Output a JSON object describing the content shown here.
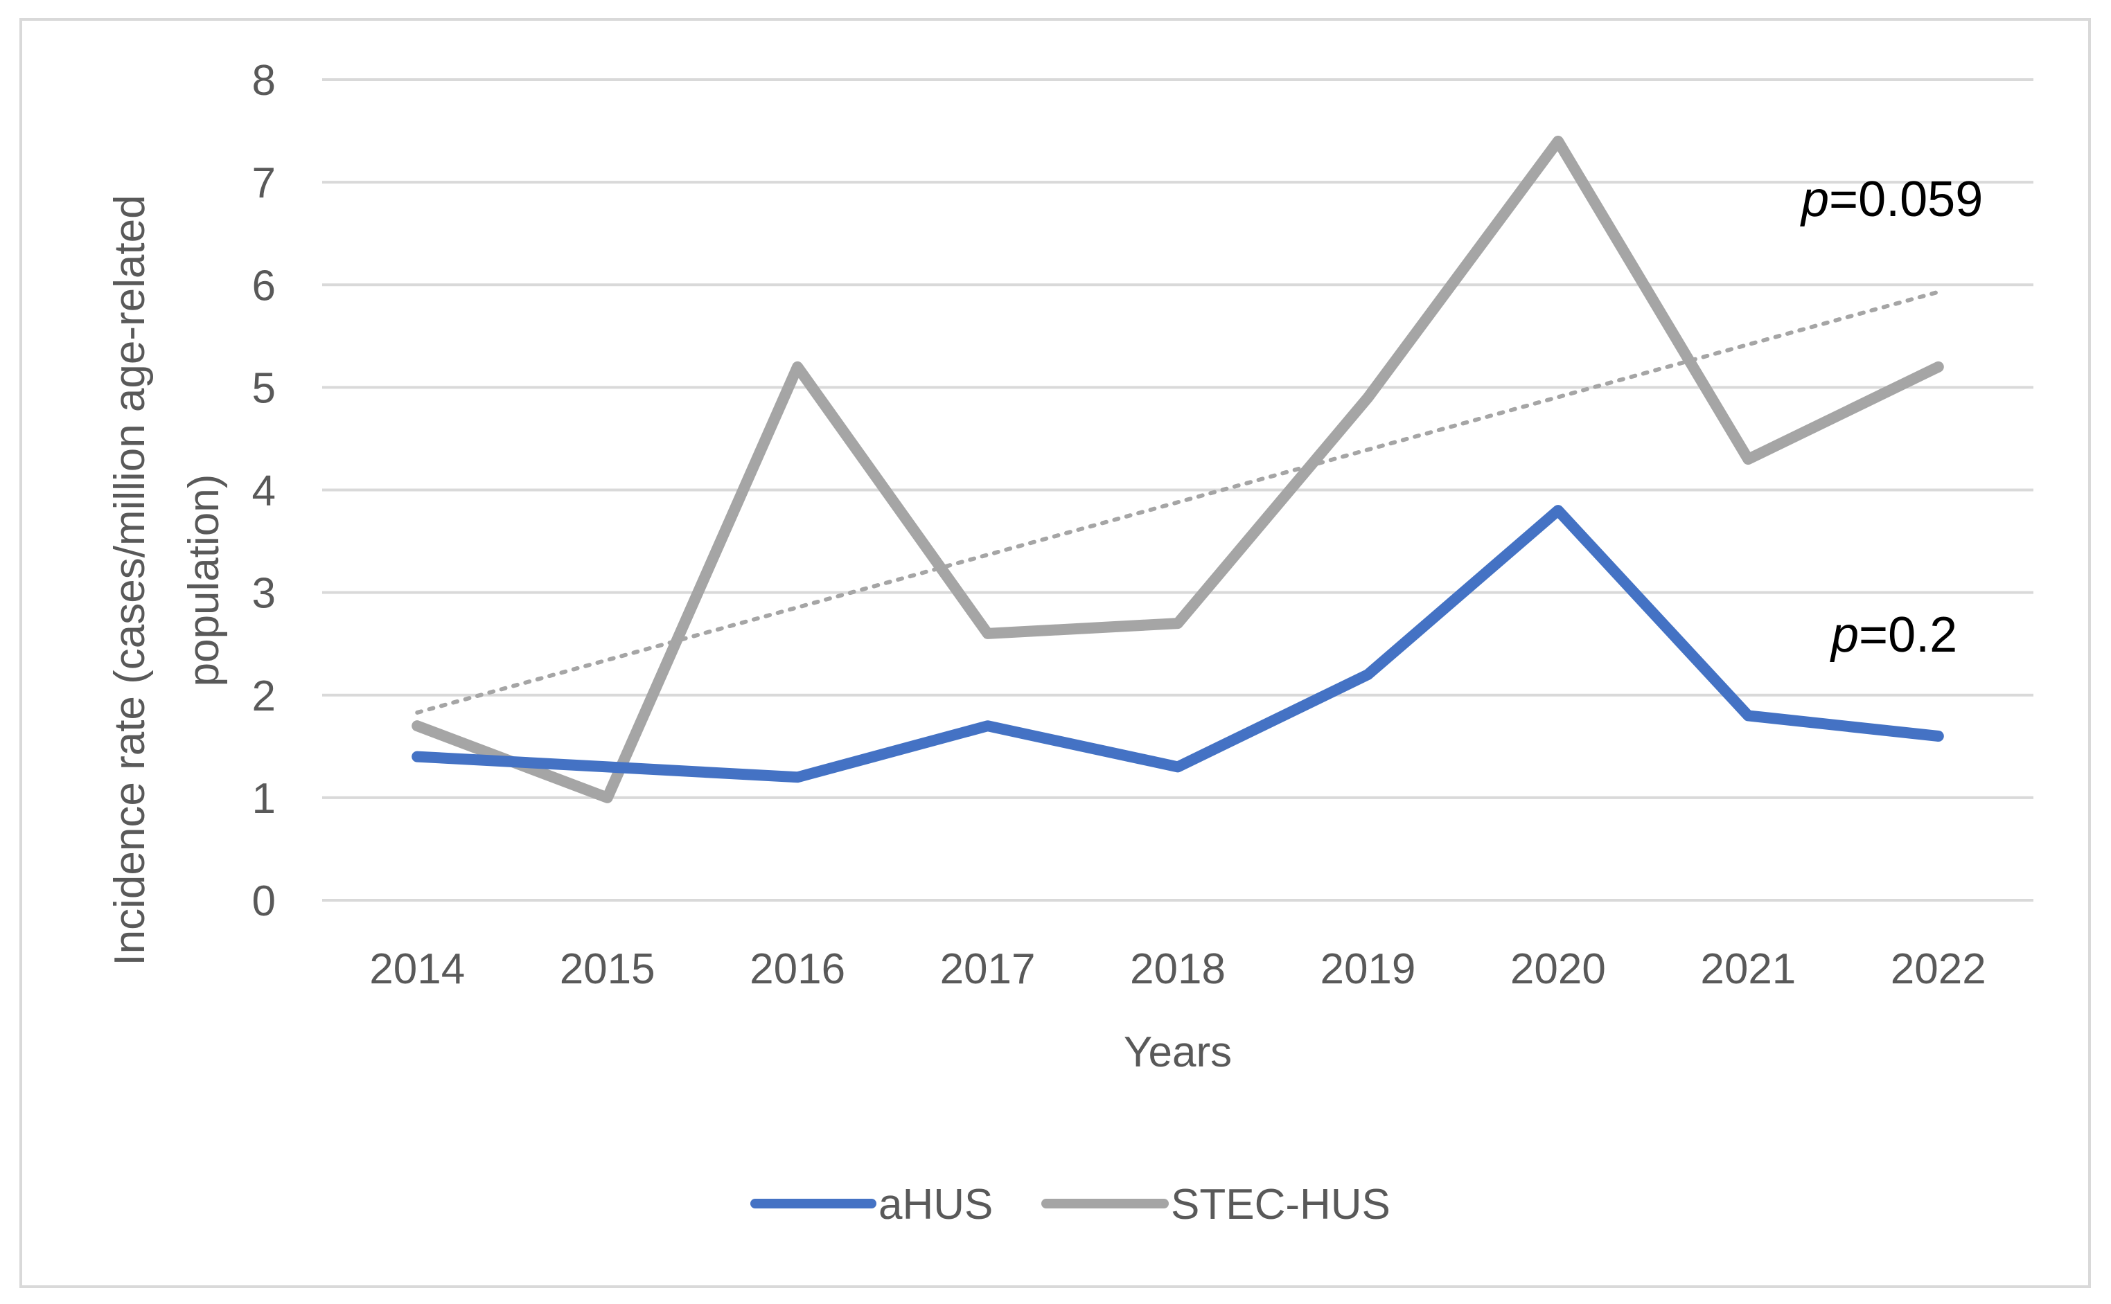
{
  "chart_data": {
    "type": "line",
    "title": "",
    "xlabel": "Years",
    "ylabel_line1": "Incidence rate (cases/million age-related",
    "ylabel_line2": "population)",
    "categories": [
      "2014",
      "2015",
      "2016",
      "2017",
      "2018",
      "2019",
      "2020",
      "2021",
      "2022"
    ],
    "y_ticks": [
      "0",
      "1",
      "2",
      "3",
      "4",
      "5",
      "6",
      "7",
      "8"
    ],
    "ylim": [
      0,
      8
    ],
    "grid": true,
    "legend_position": "bottom",
    "series": [
      {
        "name": "aHUS",
        "color": "#4472c4",
        "values": [
          1.4,
          1.3,
          1.2,
          1.7,
          1.3,
          2.2,
          3.8,
          1.8,
          1.6
        ]
      },
      {
        "name": "STEC-HUS",
        "color": "#a5a5a5",
        "values": [
          1.7,
          1.0,
          5.2,
          2.6,
          2.7,
          4.9,
          7.4,
          4.3,
          5.2
        ]
      }
    ],
    "trendline": {
      "series": "STEC-HUS",
      "style": "dotted",
      "color": "#a5a5a5",
      "start": 1.83,
      "end": 5.93
    },
    "annotations": [
      {
        "id": "stec",
        "prefix": "p",
        "text": "=0.059"
      },
      {
        "id": "ahus",
        "prefix": "p",
        "text": "=0.2"
      }
    ]
  }
}
